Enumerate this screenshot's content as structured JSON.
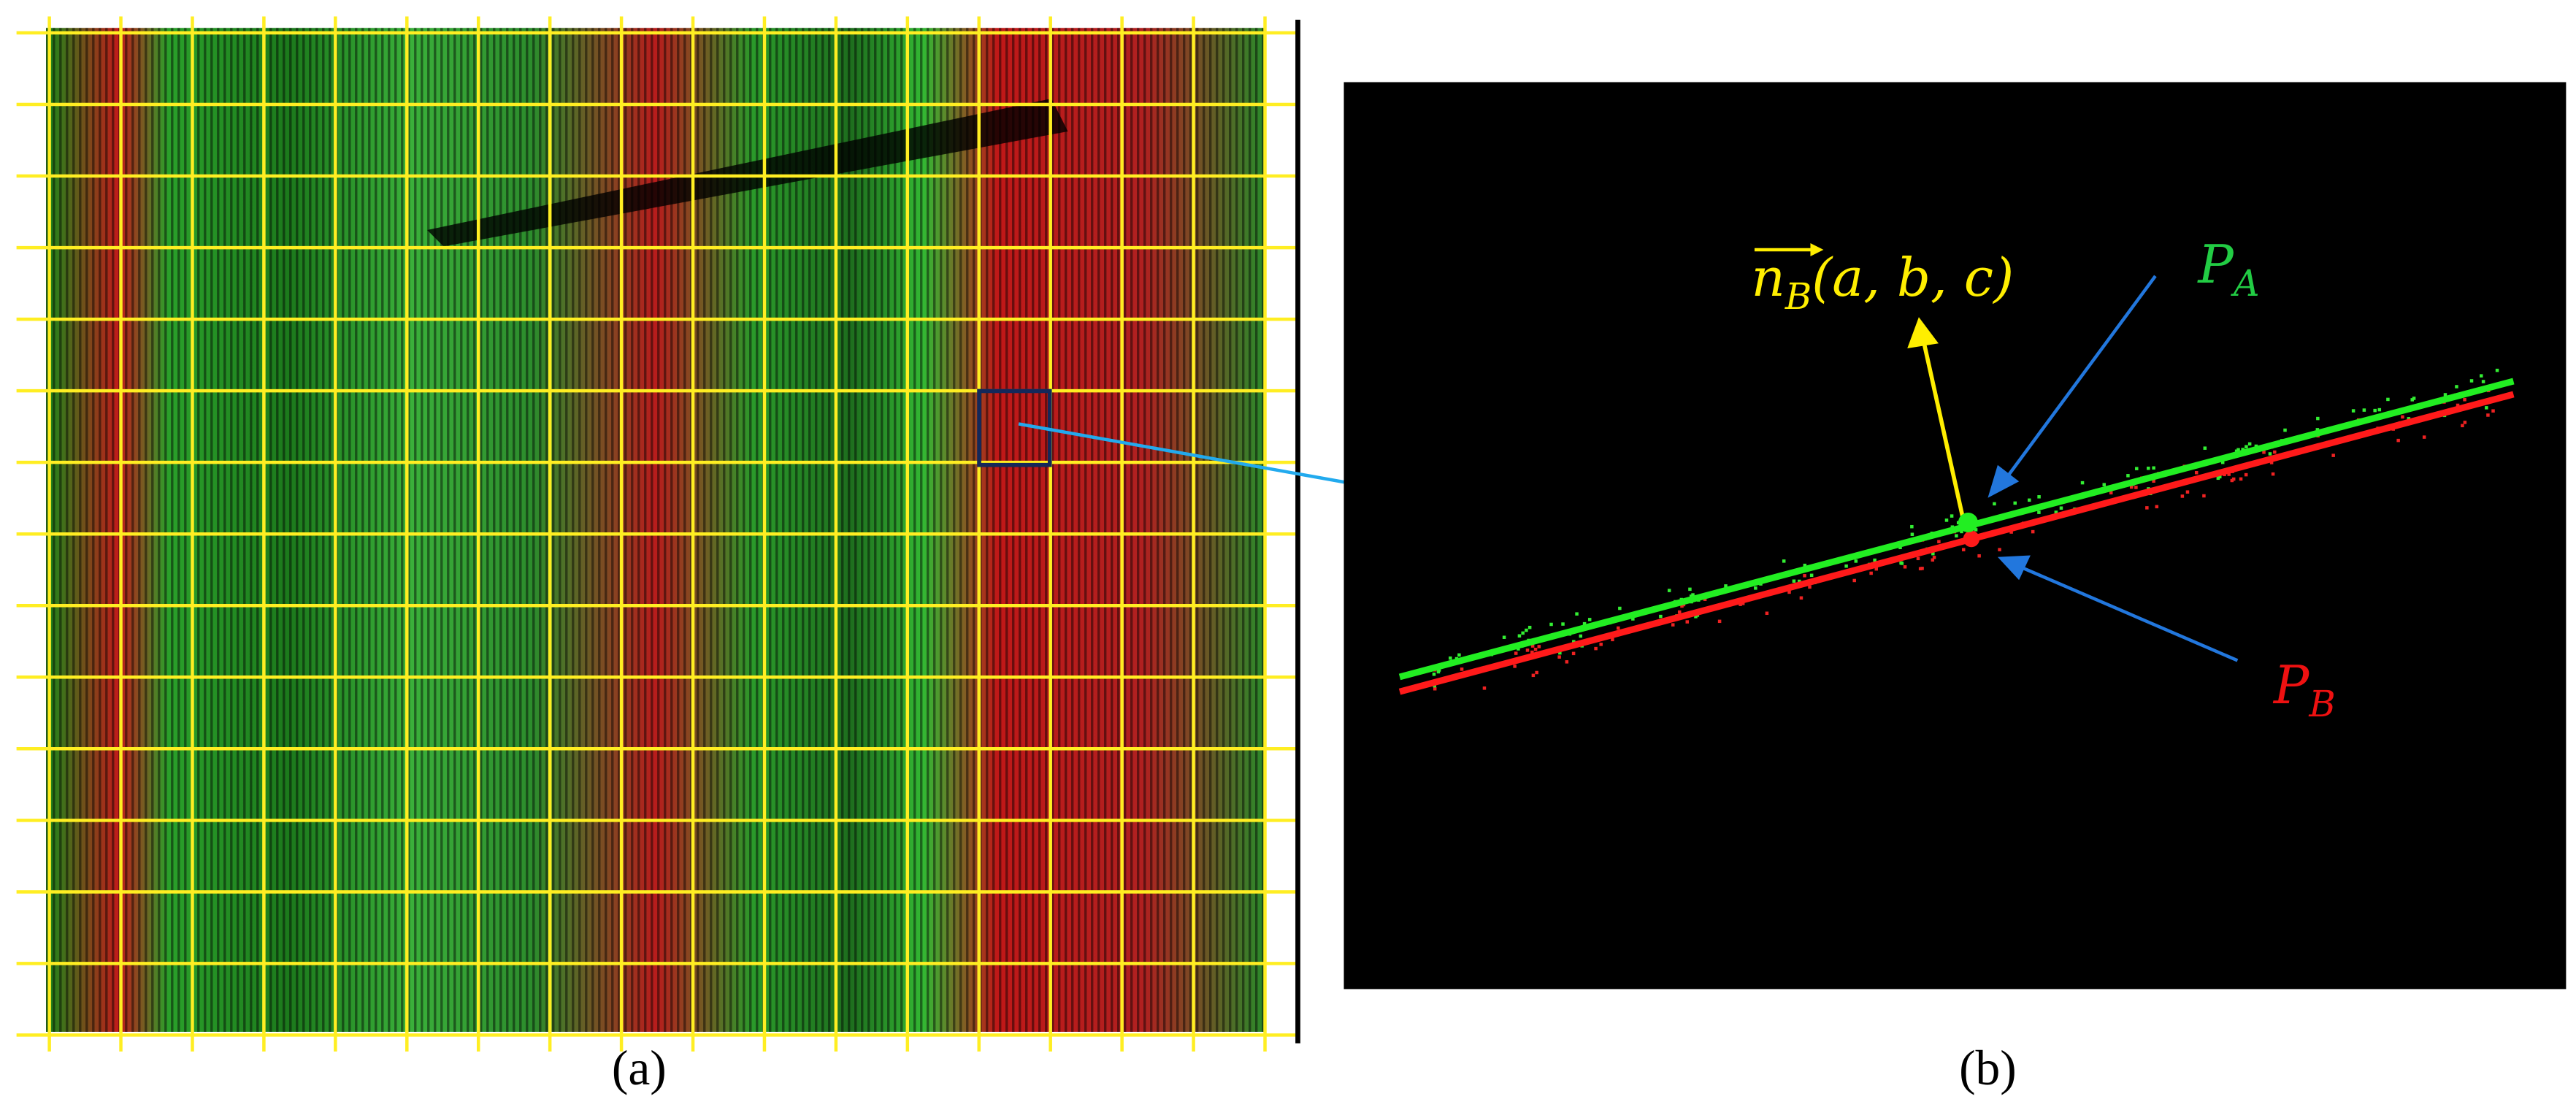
{
  "panels": [
    {
      "label": "(a)"
    },
    {
      "label": "(b)"
    }
  ],
  "annotations": {
    "normal": {
      "vector": "n",
      "sub": "B",
      "args": "(a, b, c)"
    },
    "point_a": {
      "base": "P",
      "sub": "A"
    },
    "point_b": {
      "base": "P",
      "sub": "B"
    }
  }
}
